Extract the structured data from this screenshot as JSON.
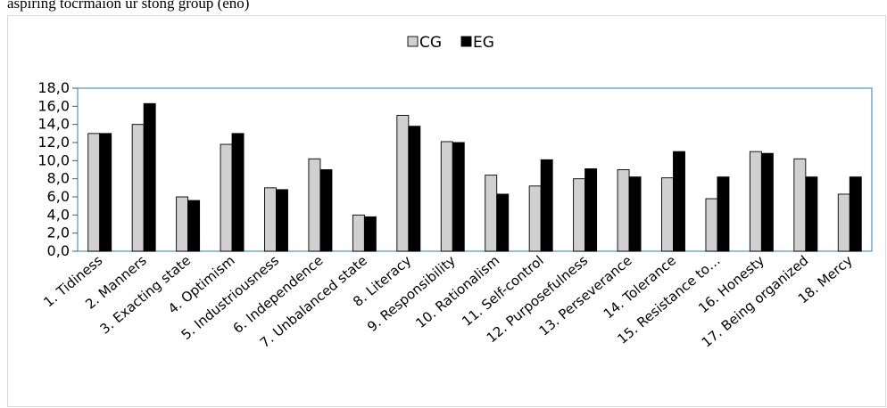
{
  "caption": "aspiring tocrmaion ur stong group (eno)",
  "colors": {
    "cg": "#d0d0d0",
    "eg": "#000000",
    "axis": "#5b9bd5"
  },
  "chart_data": {
    "type": "bar",
    "categories": [
      "1. Tidiness",
      "2. Manners",
      "3. Exacting state",
      "4. Optimism",
      "5. Industriousness",
      "6. Independence",
      "7. Unbalanced state",
      "8. Literacy",
      "9. Responsibility",
      "10. Rationalism",
      "11. Self-control",
      "12. Purposefulness",
      "13. Perseverance",
      "14. Tolerance",
      "15. Resistance to…",
      "16. Honesty",
      "17. Being organized",
      "18. Mercy"
    ],
    "series": [
      {
        "name": "CG",
        "values": [
          13.0,
          14.0,
          6.0,
          11.8,
          7.0,
          10.2,
          4.0,
          15.0,
          12.1,
          8.4,
          7.2,
          8.0,
          9.0,
          8.1,
          5.8,
          11.0,
          10.2,
          6.3
        ]
      },
      {
        "name": "EG",
        "values": [
          13.0,
          16.3,
          5.6,
          13.0,
          6.8,
          9.0,
          3.8,
          13.8,
          12.0,
          6.3,
          10.1,
          9.1,
          8.2,
          11.0,
          8.2,
          10.8,
          8.2,
          8.2
        ]
      }
    ],
    "yticks": [
      "0,0",
      "2,0",
      "4,0",
      "6,0",
      "8,0",
      "10,0",
      "12,0",
      "14,0",
      "16,0",
      "18,0"
    ],
    "ylim": [
      0,
      18
    ],
    "legend_position": "top-center",
    "grid": false
  }
}
